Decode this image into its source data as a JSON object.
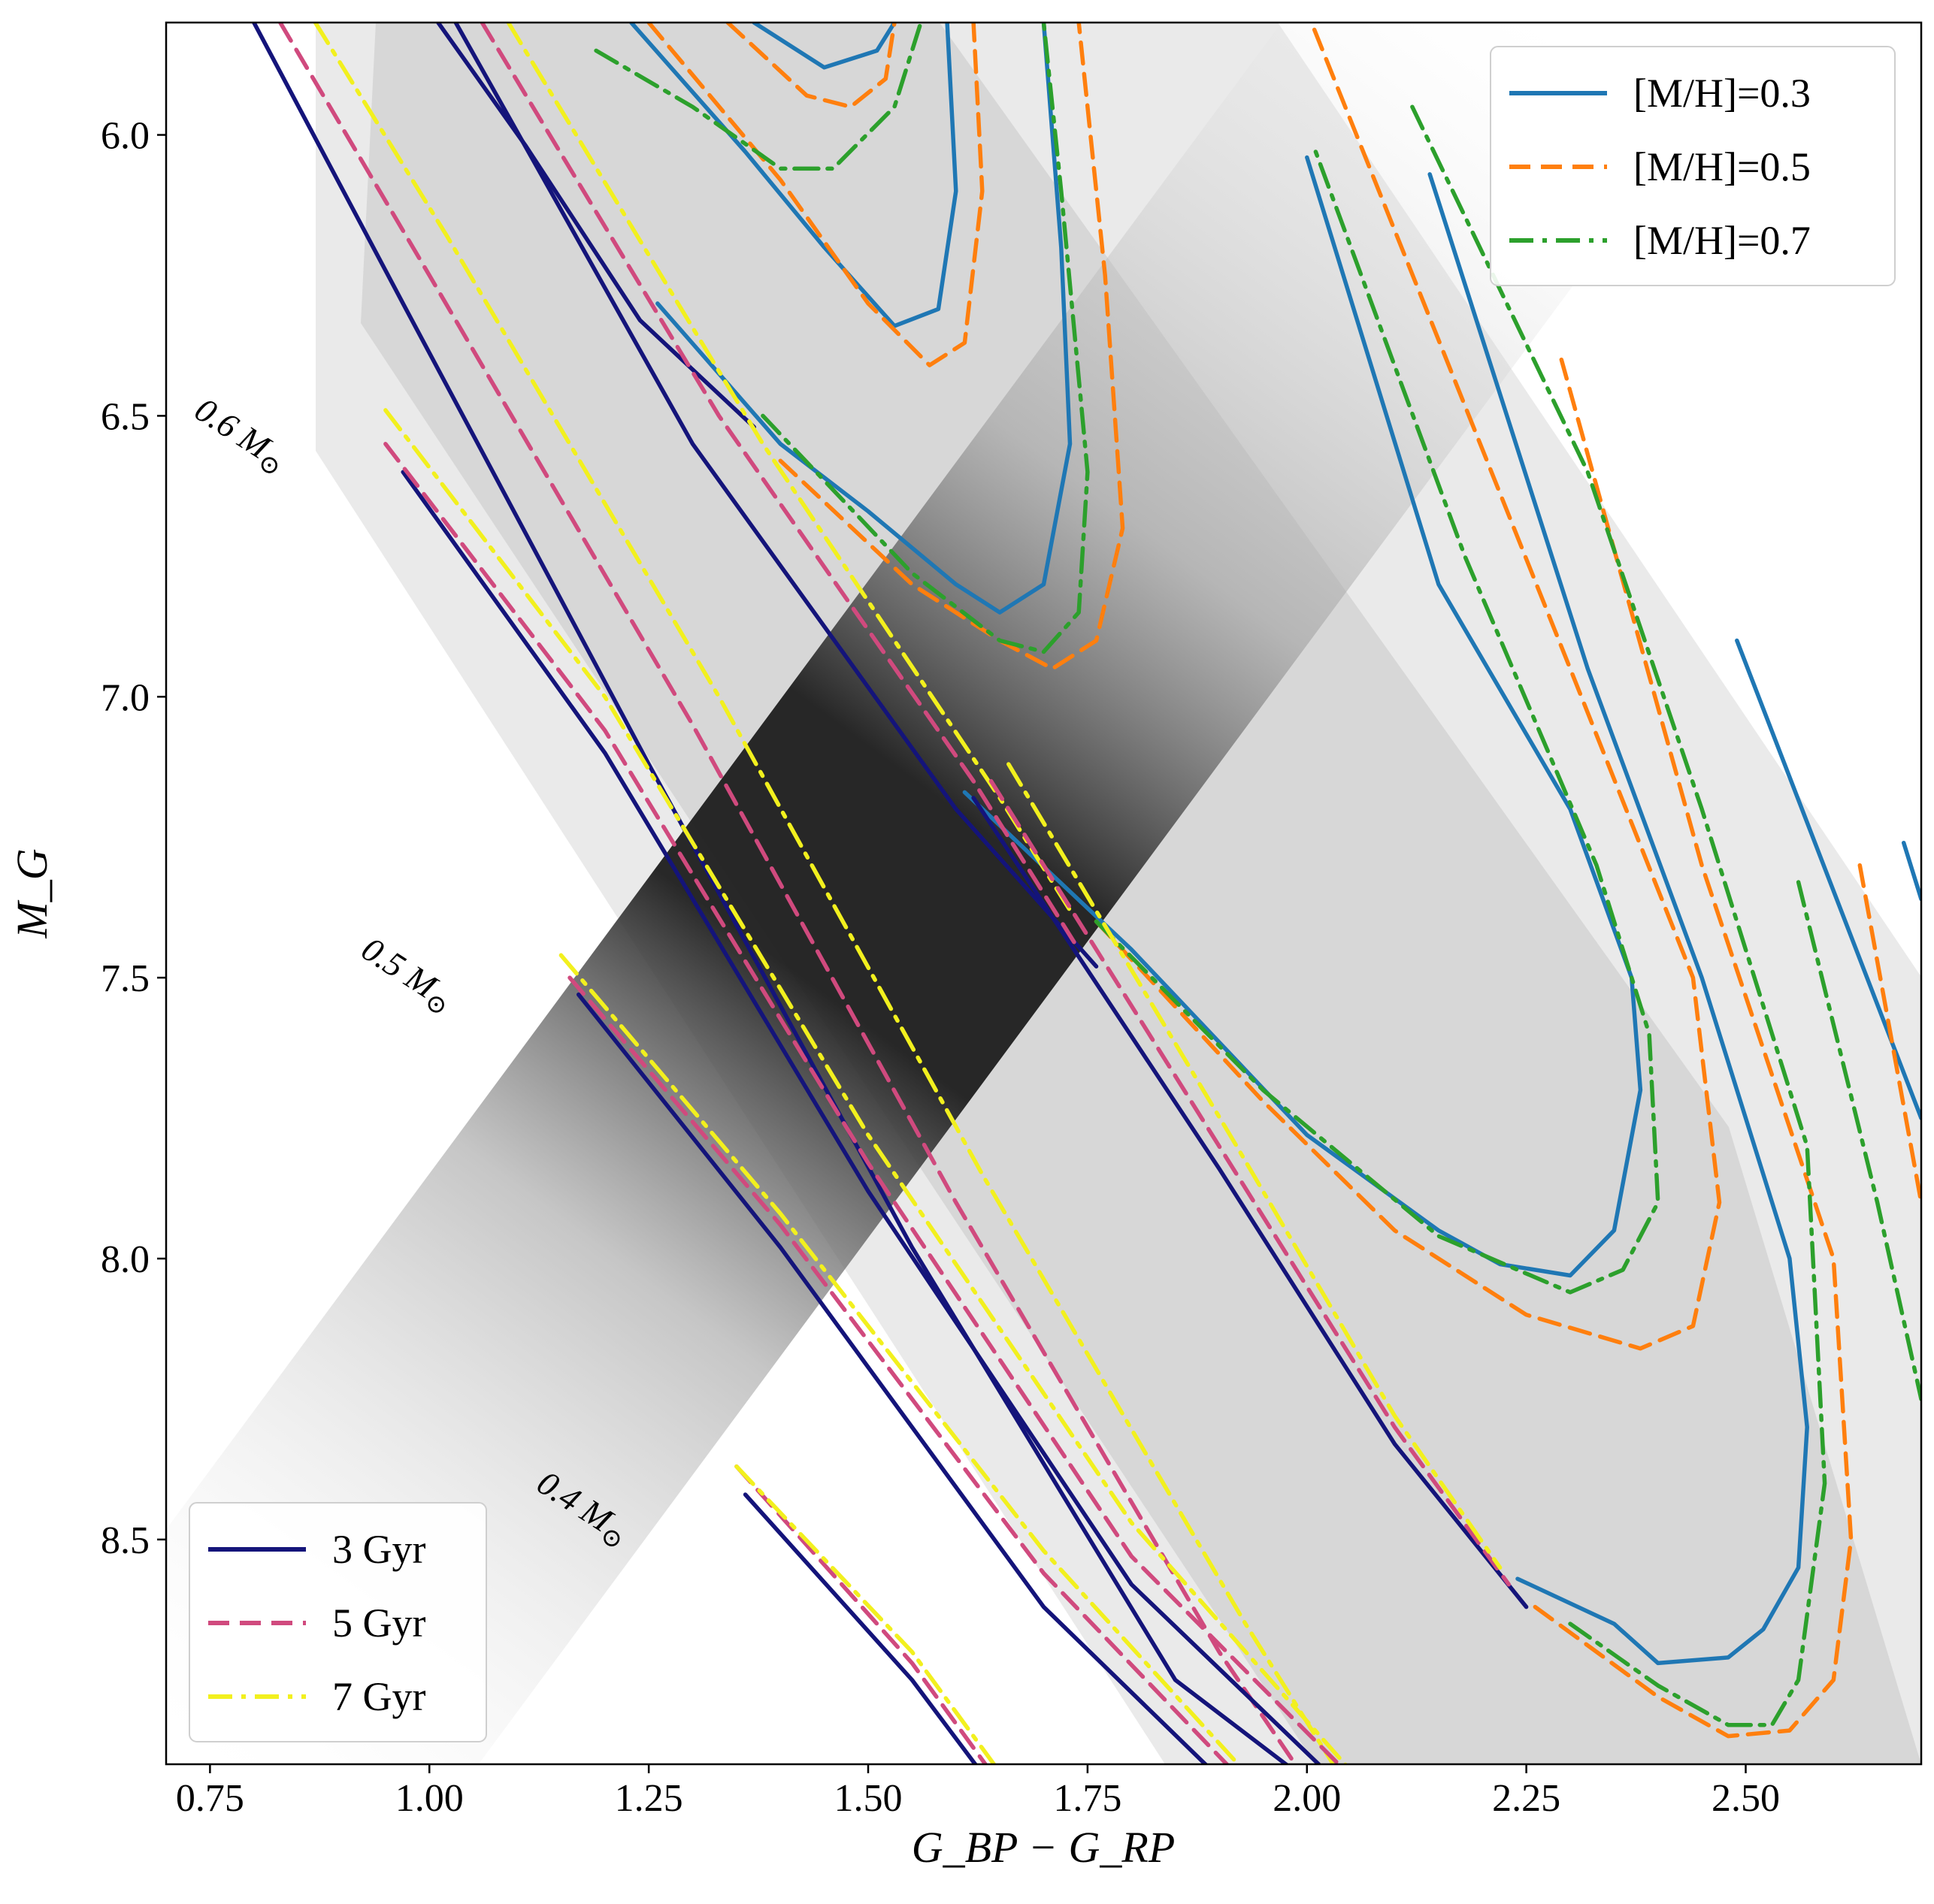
{
  "chart_data": {
    "type": "line",
    "xlabel": "G_BP − G_RP",
    "ylabel": "M_G",
    "xlim": [
      0.7,
      2.7
    ],
    "ylim": [
      8.9,
      5.8
    ],
    "x_ticks": [
      "0.75",
      "1.00",
      "1.25",
      "1.50",
      "1.75",
      "2.00",
      "2.25",
      "2.50"
    ],
    "y_ticks": [
      "6.0",
      "6.5",
      "7.0",
      "7.5",
      "8.0",
      "8.5"
    ],
    "background": "2D density histogram of stars (greyscale), densest along the main-sequence ridge",
    "colors": {
      "3 Gyr": "#14147a",
      "5 Gyr": "#d04a7e",
      "7 Gyr": "#f2f01e",
      "[M/H]=0.3": "#1f77b4",
      "[M/H]=0.5": "#ff7f0e",
      "[M/H]=0.7": "#2ca02c"
    },
    "legend_age": {
      "placement": "lower-left",
      "entries": [
        {
          "label": "3 Gyr",
          "style": "solid"
        },
        {
          "label": "5 Gyr",
          "style": "dashed"
        },
        {
          "label": "7 Gyr",
          "style": "dashdot"
        }
      ]
    },
    "legend_metallicity": {
      "placement": "upper-right",
      "entries": [
        {
          "label": "[M/H]=0.3",
          "style": "solid"
        },
        {
          "label": "[M/H]=0.5",
          "style": "dashed"
        },
        {
          "label": "[M/H]=0.7",
          "style": "dashdot"
        }
      ]
    },
    "mass_labels": [
      {
        "mass": "0.6",
        "text": "0.6 M",
        "anchor": [
          0.73,
          6.5
        ]
      },
      {
        "mass": "0.5",
        "text": "0.5 M",
        "anchor": [
          0.92,
          7.46
        ]
      },
      {
        "mass": "0.4",
        "text": "0.4 M",
        "anchor": [
          1.12,
          8.41
        ]
      }
    ],
    "isochrones": [
      {
        "name": "3 Gyr, 0.6 Msun",
        "age": "3 Gyr",
        "points": [
          [
            0.8,
            5.8
          ],
          [
            0.97,
            6.3
          ],
          [
            1.25,
            7.12
          ],
          [
            1.55,
            7.98
          ],
          [
            1.85,
            8.75
          ],
          [
            2.06,
            9.0
          ]
        ]
      },
      {
        "name": "5 Gyr, 0.6 Msun",
        "age": "5 Gyr",
        "points": [
          [
            0.83,
            5.8
          ],
          [
            1.0,
            6.25
          ],
          [
            1.3,
            7.05
          ],
          [
            1.6,
            7.9
          ],
          [
            1.9,
            8.7
          ],
          [
            2.03,
            9.0
          ]
        ]
      },
      {
        "name": "7 Gyr, 0.6 Msun",
        "age": "7 Gyr",
        "points": [
          [
            0.87,
            5.8
          ],
          [
            1.02,
            6.18
          ],
          [
            1.33,
            7.0
          ],
          [
            1.63,
            7.85
          ],
          [
            1.93,
            8.65
          ],
          [
            2.07,
            9.0
          ]
        ]
      },
      {
        "name": "3 Gyr, 0.6 Msun upper",
        "age": "3 Gyr",
        "points": [
          [
            1.01,
            5.8
          ],
          [
            1.11,
            6.02
          ],
          [
            1.24,
            6.33
          ],
          [
            1.37,
            6.52
          ]
        ]
      },
      {
        "name": "3 Gyr, 0.5 Msun",
        "age": "3 Gyr",
        "points": [
          [
            0.97,
            6.6
          ],
          [
            1.2,
            7.1
          ],
          [
            1.5,
            7.88
          ],
          [
            1.8,
            8.58
          ],
          [
            2.08,
            9.0
          ]
        ]
      },
      {
        "name": "5 Gyr, 0.5 Msun",
        "age": "5 Gyr",
        "points": [
          [
            0.95,
            6.55
          ],
          [
            1.2,
            7.06
          ],
          [
            1.5,
            7.83
          ],
          [
            1.8,
            8.53
          ],
          [
            2.1,
            9.0
          ]
        ]
      },
      {
        "name": "7 Gyr, 0.5 Msun",
        "age": "7 Gyr",
        "points": [
          [
            0.95,
            6.49
          ],
          [
            1.2,
            7.0
          ],
          [
            1.5,
            7.78
          ],
          [
            1.8,
            8.47
          ],
          [
            2.1,
            9.0
          ]
        ]
      },
      {
        "name": "3 Gyr, 0.5 Msun upper",
        "age": "3 Gyr",
        "points": [
          [
            1.03,
            5.8
          ],
          [
            1.3,
            6.55
          ],
          [
            1.6,
            7.2
          ],
          [
            1.76,
            7.48
          ]
        ]
      },
      {
        "name": "5 Gyr, 0.5 Msun upper",
        "age": "5 Gyr",
        "points": [
          [
            1.06,
            5.8
          ],
          [
            1.33,
            6.5
          ],
          [
            1.62,
            7.15
          ],
          [
            1.74,
            7.45
          ]
        ]
      },
      {
        "name": "7 Gyr, 0.5 Msun upper",
        "age": "7 Gyr",
        "points": [
          [
            1.09,
            5.8
          ],
          [
            1.38,
            6.55
          ],
          [
            1.65,
            7.18
          ],
          [
            1.73,
            7.38
          ]
        ]
      },
      {
        "name": "3 Gyr, 0.4 Msun",
        "age": "3 Gyr",
        "points": [
          [
            1.17,
            7.53
          ],
          [
            1.4,
            7.98
          ],
          [
            1.7,
            8.62
          ],
          [
            1.95,
            9.0
          ]
        ]
      },
      {
        "name": "5 Gyr, 0.4 Msun",
        "age": "5 Gyr",
        "points": [
          [
            1.16,
            7.5
          ],
          [
            1.4,
            7.94
          ],
          [
            1.7,
            8.56
          ],
          [
            1.97,
            9.0
          ]
        ]
      },
      {
        "name": "7 Gyr, 0.4 Msun",
        "age": "7 Gyr",
        "points": [
          [
            1.15,
            7.46
          ],
          [
            1.4,
            7.92
          ],
          [
            1.7,
            8.52
          ],
          [
            1.98,
            9.0
          ]
        ]
      },
      {
        "name": "3 Gyr, 0.4 Msun upper",
        "age": "3 Gyr",
        "points": [
          [
            1.62,
            7.18
          ],
          [
            1.9,
            7.84
          ],
          [
            2.1,
            8.33
          ],
          [
            2.25,
            8.62
          ]
        ]
      },
      {
        "name": "5 Gyr, 0.4 Msun upper",
        "age": "5 Gyr",
        "points": [
          [
            1.64,
            7.15
          ],
          [
            1.9,
            7.8
          ],
          [
            2.1,
            8.3
          ],
          [
            2.23,
            8.58
          ]
        ]
      },
      {
        "name": "7 Gyr, 0.4 Msun upper",
        "age": "7 Gyr",
        "points": [
          [
            1.66,
            7.12
          ],
          [
            1.92,
            7.8
          ],
          [
            2.1,
            8.28
          ],
          [
            2.22,
            8.55
          ]
        ]
      },
      {
        "name": "3 Gyr, 0.3 Msun",
        "age": "3 Gyr",
        "points": [
          [
            1.36,
            8.42
          ],
          [
            1.55,
            8.75
          ],
          [
            1.67,
            9.0
          ]
        ]
      },
      {
        "name": "5 Gyr, 0.3 Msun",
        "age": "5 Gyr",
        "points": [
          [
            1.35,
            8.37
          ],
          [
            1.55,
            8.72
          ],
          [
            1.68,
            9.0
          ]
        ]
      },
      {
        "name": "7 Gyr, 0.3 Msun",
        "age": "7 Gyr",
        "points": [
          [
            1.35,
            8.37
          ],
          [
            1.55,
            8.7
          ],
          [
            1.69,
            9.0
          ]
        ]
      }
    ],
    "metallicity_tracks": [
      {
        "name": "[M/H]=0.3 a",
        "metallicity": "[M/H]=0.3",
        "points": [
          [
            1.37,
            5.8
          ],
          [
            1.45,
            5.88
          ],
          [
            1.51,
            5.85
          ],
          [
            1.53,
            5.8
          ]
        ]
      },
      {
        "name": "[M/H]=0.3 b",
        "metallicity": "[M/H]=0.3",
        "points": [
          [
            1.23,
            5.8
          ],
          [
            1.36,
            6.03
          ],
          [
            1.45,
            6.2
          ],
          [
            1.53,
            6.34
          ],
          [
            1.58,
            6.31
          ],
          [
            1.6,
            6.1
          ],
          [
            1.59,
            5.8
          ]
        ]
      },
      {
        "name": "[M/H]=0.3 c",
        "metallicity": "[M/H]=0.3",
        "points": [
          [
            1.26,
            6.3
          ],
          [
            1.4,
            6.55
          ],
          [
            1.5,
            6.67
          ],
          [
            1.6,
            6.8
          ],
          [
            1.65,
            6.85
          ],
          [
            1.7,
            6.8
          ],
          [
            1.73,
            6.55
          ],
          [
            1.72,
            6.2
          ],
          [
            1.7,
            5.8
          ]
        ]
      },
      {
        "name": "[M/H]=0.3 d",
        "metallicity": "[M/H]=0.3",
        "points": [
          [
            1.61,
            7.17
          ],
          [
            1.8,
            7.45
          ],
          [
            2.0,
            7.78
          ],
          [
            2.15,
            7.95
          ],
          [
            2.22,
            8.01
          ],
          [
            2.3,
            8.03
          ],
          [
            2.35,
            7.95
          ],
          [
            2.38,
            7.7
          ],
          [
            2.37,
            7.5
          ],
          [
            2.3,
            7.2
          ],
          [
            2.15,
            6.8
          ],
          [
            2.0,
            6.04
          ]
        ]
      },
      {
        "name": "[M/H]=0.3 e",
        "metallicity": "[M/H]=0.3",
        "points": [
          [
            2.24,
            8.57
          ],
          [
            2.35,
            8.65
          ],
          [
            2.4,
            8.72
          ],
          [
            2.48,
            8.71
          ],
          [
            2.52,
            8.66
          ],
          [
            2.56,
            8.55
          ],
          [
            2.57,
            8.3
          ],
          [
            2.55,
            8.0
          ],
          [
            2.45,
            7.5
          ],
          [
            2.32,
            6.95
          ],
          [
            2.14,
            6.07
          ]
        ]
      },
      {
        "name": "[M/H]=0.3 f",
        "metallicity": "[M/H]=0.3",
        "points": [
          [
            2.49,
            6.9
          ],
          [
            2.7,
            7.75
          ]
        ]
      },
      {
        "name": "[M/H]=0.3 g",
        "metallicity": "[M/H]=0.3",
        "points": [
          [
            2.68,
            7.26
          ],
          [
            2.7,
            7.36
          ]
        ]
      },
      {
        "name": "[M/H]=0.5 a",
        "metallicity": "[M/H]=0.5",
        "points": [
          [
            1.34,
            5.8
          ],
          [
            1.43,
            5.93
          ],
          [
            1.48,
            5.95
          ],
          [
            1.52,
            5.9
          ],
          [
            1.53,
            5.8
          ]
        ]
      },
      {
        "name": "[M/H]=0.5 b",
        "metallicity": "[M/H]=0.5",
        "points": [
          [
            1.25,
            5.8
          ],
          [
            1.4,
            6.08
          ],
          [
            1.5,
            6.3
          ],
          [
            1.57,
            6.41
          ],
          [
            1.61,
            6.37
          ],
          [
            1.63,
            6.1
          ],
          [
            1.62,
            5.8
          ]
        ]
      },
      {
        "name": "[M/H]=0.5 c",
        "metallicity": "[M/H]=0.5",
        "points": [
          [
            1.4,
            6.58
          ],
          [
            1.55,
            6.8
          ],
          [
            1.65,
            6.9
          ],
          [
            1.71,
            6.95
          ],
          [
            1.76,
            6.9
          ],
          [
            1.79,
            6.7
          ],
          [
            1.77,
            6.25
          ],
          [
            1.74,
            5.8
          ]
        ]
      },
      {
        "name": "[M/H]=0.5 d",
        "metallicity": "[M/H]=0.5",
        "points": [
          [
            1.76,
            7.4
          ],
          [
            1.95,
            7.72
          ],
          [
            2.1,
            7.95
          ],
          [
            2.25,
            8.1
          ],
          [
            2.38,
            8.16
          ],
          [
            2.44,
            8.12
          ],
          [
            2.47,
            7.9
          ],
          [
            2.44,
            7.5
          ],
          [
            2.3,
            6.95
          ],
          [
            2.0,
            5.78
          ]
        ]
      },
      {
        "name": "[M/H]=0.5 e",
        "metallicity": "[M/H]=0.5",
        "points": [
          [
            2.26,
            8.62
          ],
          [
            2.4,
            8.78
          ],
          [
            2.48,
            8.85
          ],
          [
            2.55,
            8.84
          ],
          [
            2.6,
            8.75
          ],
          [
            2.62,
            8.5
          ],
          [
            2.6,
            8.0
          ],
          [
            2.45,
            7.3
          ],
          [
            2.29,
            6.4
          ]
        ]
      },
      {
        "name": "[M/H]=0.5 f",
        "metallicity": "[M/H]=0.5",
        "points": [
          [
            2.63,
            7.3
          ],
          [
            2.7,
            7.9
          ]
        ]
      },
      {
        "name": "[M/H]=0.7 a",
        "metallicity": "[M/H]=0.7",
        "points": [
          [
            1.19,
            5.85
          ],
          [
            1.3,
            5.95
          ],
          [
            1.4,
            6.06
          ],
          [
            1.46,
            6.06
          ],
          [
            1.53,
            5.95
          ],
          [
            1.56,
            5.8
          ]
        ]
      },
      {
        "name": "[M/H]=0.7 b",
        "metallicity": "[M/H]=0.7",
        "points": [
          [
            1.38,
            6.5
          ],
          [
            1.55,
            6.78
          ],
          [
            1.65,
            6.9
          ],
          [
            1.7,
            6.92
          ],
          [
            1.74,
            6.85
          ],
          [
            1.75,
            6.6
          ],
          [
            1.72,
            6.1
          ],
          [
            1.7,
            5.8
          ]
        ]
      },
      {
        "name": "[M/H]=0.7 c",
        "metallicity": "[M/H]=0.7",
        "points": [
          [
            1.76,
            7.4
          ],
          [
            1.95,
            7.7
          ],
          [
            2.15,
            7.96
          ],
          [
            2.3,
            8.06
          ],
          [
            2.36,
            8.02
          ],
          [
            2.4,
            7.9
          ],
          [
            2.39,
            7.6
          ],
          [
            2.33,
            7.3
          ],
          [
            2.18,
            6.75
          ],
          [
            2.01,
            6.03
          ]
        ]
      },
      {
        "name": "[M/H]=0.7 d",
        "metallicity": "[M/H]=0.7",
        "points": [
          [
            2.3,
            8.65
          ],
          [
            2.4,
            8.76
          ],
          [
            2.48,
            8.83
          ],
          [
            2.53,
            8.83
          ],
          [
            2.56,
            8.75
          ],
          [
            2.59,
            8.4
          ],
          [
            2.57,
            7.8
          ],
          [
            2.45,
            7.2
          ],
          [
            2.32,
            6.6
          ],
          [
            2.12,
            5.95
          ]
        ]
      },
      {
        "name": "[M/H]=0.7 e",
        "metallicity": "[M/H]=0.7",
        "points": [
          [
            2.56,
            7.33
          ],
          [
            2.65,
            7.9
          ],
          [
            2.7,
            8.25
          ]
        ]
      }
    ]
  }
}
